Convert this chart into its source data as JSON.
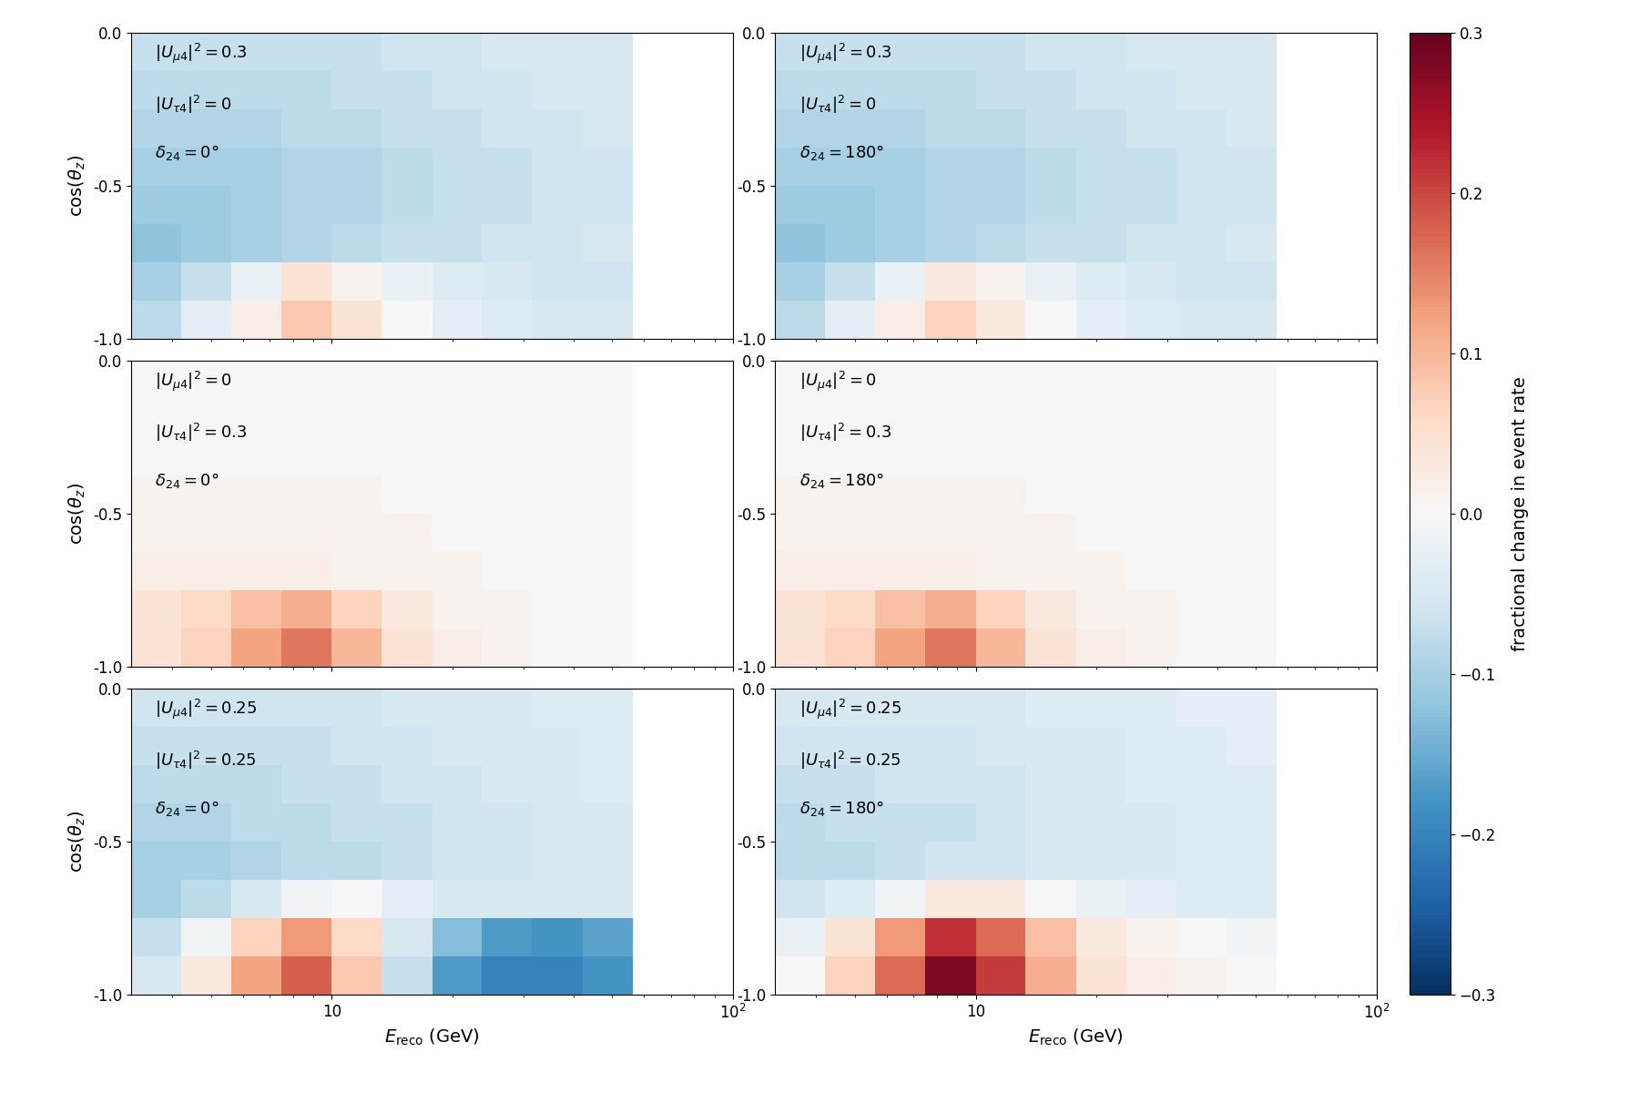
{
  "panels": [
    {
      "row": 0,
      "col": 0,
      "label_mu4": "0.3",
      "label_tau4": "0",
      "label_delta": "0",
      "data": [
        [
          -0.07,
          -0.07,
          -0.07,
          -0.07,
          -0.07,
          -0.06,
          -0.06,
          -0.05,
          -0.05,
          -0.05
        ],
        [
          -0.08,
          -0.08,
          -0.08,
          -0.08,
          -0.07,
          -0.07,
          -0.06,
          -0.06,
          -0.05,
          -0.05
        ],
        [
          -0.09,
          -0.09,
          -0.09,
          -0.08,
          -0.08,
          -0.07,
          -0.07,
          -0.06,
          -0.06,
          -0.05
        ],
        [
          -0.1,
          -0.1,
          -0.1,
          -0.09,
          -0.09,
          -0.08,
          -0.07,
          -0.07,
          -0.06,
          -0.06
        ],
        [
          -0.11,
          -0.11,
          -0.1,
          -0.09,
          -0.09,
          -0.08,
          -0.07,
          -0.07,
          -0.06,
          -0.06
        ],
        [
          -0.12,
          -0.11,
          -0.1,
          -0.09,
          -0.08,
          -0.07,
          -0.07,
          -0.06,
          -0.06,
          -0.05
        ],
        [
          -0.1,
          -0.07,
          -0.02,
          0.04,
          0.01,
          -0.02,
          -0.04,
          -0.05,
          -0.06,
          -0.06
        ],
        [
          -0.08,
          -0.03,
          0.02,
          0.08,
          0.04,
          0.0,
          -0.03,
          -0.04,
          -0.05,
          -0.05
        ]
      ]
    },
    {
      "row": 0,
      "col": 1,
      "label_mu4": "0.3",
      "label_tau4": "0",
      "label_delta": "180",
      "data": [
        [
          -0.07,
          -0.07,
          -0.07,
          -0.07,
          -0.07,
          -0.06,
          -0.06,
          -0.05,
          -0.05,
          -0.05
        ],
        [
          -0.08,
          -0.08,
          -0.08,
          -0.08,
          -0.07,
          -0.07,
          -0.06,
          -0.06,
          -0.05,
          -0.05
        ],
        [
          -0.09,
          -0.09,
          -0.09,
          -0.08,
          -0.08,
          -0.07,
          -0.07,
          -0.06,
          -0.06,
          -0.05
        ],
        [
          -0.1,
          -0.1,
          -0.1,
          -0.09,
          -0.09,
          -0.08,
          -0.07,
          -0.07,
          -0.06,
          -0.06
        ],
        [
          -0.11,
          -0.11,
          -0.1,
          -0.09,
          -0.09,
          -0.08,
          -0.07,
          -0.07,
          -0.06,
          -0.06
        ],
        [
          -0.12,
          -0.11,
          -0.1,
          -0.09,
          -0.08,
          -0.07,
          -0.07,
          -0.06,
          -0.06,
          -0.05
        ],
        [
          -0.1,
          -0.07,
          -0.02,
          0.03,
          0.01,
          -0.02,
          -0.04,
          -0.05,
          -0.06,
          -0.06
        ],
        [
          -0.08,
          -0.03,
          0.02,
          0.07,
          0.03,
          0.0,
          -0.03,
          -0.04,
          -0.05,
          -0.05
        ]
      ]
    },
    {
      "row": 1,
      "col": 0,
      "label_mu4": "0",
      "label_tau4": "0.3",
      "label_delta": "0",
      "data": [
        [
          0.0,
          0.0,
          0.0,
          0.0,
          0.0,
          0.0,
          0.0,
          0.0,
          0.0,
          0.0
        ],
        [
          0.0,
          0.0,
          0.0,
          0.0,
          0.0,
          0.0,
          0.0,
          0.0,
          0.0,
          0.0
        ],
        [
          0.0,
          0.0,
          0.0,
          0.0,
          0.0,
          0.0,
          0.0,
          0.0,
          0.0,
          0.0
        ],
        [
          0.01,
          0.01,
          0.01,
          0.01,
          0.01,
          0.0,
          0.0,
          0.0,
          0.0,
          0.0
        ],
        [
          0.01,
          0.01,
          0.01,
          0.01,
          0.01,
          0.01,
          0.0,
          0.0,
          0.0,
          0.0
        ],
        [
          0.02,
          0.02,
          0.02,
          0.02,
          0.01,
          0.01,
          0.01,
          0.0,
          0.0,
          0.0
        ],
        [
          0.04,
          0.06,
          0.09,
          0.11,
          0.07,
          0.03,
          0.01,
          0.01,
          0.0,
          0.0
        ],
        [
          0.04,
          0.07,
          0.12,
          0.16,
          0.1,
          0.04,
          0.02,
          0.01,
          0.0,
          0.0
        ]
      ]
    },
    {
      "row": 1,
      "col": 1,
      "label_mu4": "0",
      "label_tau4": "0.3",
      "label_delta": "180",
      "data": [
        [
          0.0,
          0.0,
          0.0,
          0.0,
          0.0,
          0.0,
          0.0,
          0.0,
          0.0,
          0.0
        ],
        [
          0.0,
          0.0,
          0.0,
          0.0,
          0.0,
          0.0,
          0.0,
          0.0,
          0.0,
          0.0
        ],
        [
          0.0,
          0.0,
          0.0,
          0.0,
          0.0,
          0.0,
          0.0,
          0.0,
          0.0,
          0.0
        ],
        [
          0.01,
          0.01,
          0.01,
          0.01,
          0.01,
          0.0,
          0.0,
          0.0,
          0.0,
          0.0
        ],
        [
          0.01,
          0.01,
          0.01,
          0.01,
          0.01,
          0.01,
          0.0,
          0.0,
          0.0,
          0.0
        ],
        [
          0.02,
          0.02,
          0.02,
          0.02,
          0.01,
          0.01,
          0.01,
          0.0,
          0.0,
          0.0
        ],
        [
          0.04,
          0.06,
          0.09,
          0.11,
          0.07,
          0.03,
          0.01,
          0.01,
          0.0,
          0.0
        ],
        [
          0.04,
          0.07,
          0.12,
          0.16,
          0.1,
          0.04,
          0.02,
          0.01,
          0.0,
          0.0
        ]
      ]
    },
    {
      "row": 2,
      "col": 0,
      "label_mu4": "0.25",
      "label_tau4": "0.25",
      "label_delta": "0",
      "data": [
        [
          -0.06,
          -0.06,
          -0.06,
          -0.06,
          -0.06,
          -0.05,
          -0.05,
          -0.05,
          -0.04,
          -0.04
        ],
        [
          -0.07,
          -0.07,
          -0.07,
          -0.07,
          -0.06,
          -0.06,
          -0.05,
          -0.05,
          -0.05,
          -0.04
        ],
        [
          -0.08,
          -0.08,
          -0.08,
          -0.07,
          -0.07,
          -0.06,
          -0.06,
          -0.05,
          -0.05,
          -0.04
        ],
        [
          -0.09,
          -0.09,
          -0.08,
          -0.08,
          -0.07,
          -0.07,
          -0.06,
          -0.06,
          -0.05,
          -0.05
        ],
        [
          -0.1,
          -0.1,
          -0.09,
          -0.08,
          -0.08,
          -0.07,
          -0.06,
          -0.06,
          -0.05,
          -0.05
        ],
        [
          -0.1,
          -0.08,
          -0.05,
          -0.01,
          0.0,
          -0.03,
          -0.05,
          -0.05,
          -0.05,
          -0.05
        ],
        [
          -0.07,
          -0.01,
          0.07,
          0.13,
          0.06,
          -0.05,
          -0.13,
          -0.17,
          -0.18,
          -0.16
        ],
        [
          -0.05,
          0.03,
          0.12,
          0.18,
          0.08,
          -0.07,
          -0.17,
          -0.2,
          -0.2,
          -0.18
        ]
      ]
    },
    {
      "row": 2,
      "col": 1,
      "label_mu4": "0.25",
      "label_tau4": "0.25",
      "label_delta": "180",
      "data": [
        [
          -0.05,
          -0.05,
          -0.05,
          -0.05,
          -0.05,
          -0.04,
          -0.04,
          -0.04,
          -0.03,
          -0.03
        ],
        [
          -0.06,
          -0.06,
          -0.06,
          -0.06,
          -0.05,
          -0.05,
          -0.05,
          -0.04,
          -0.04,
          -0.03
        ],
        [
          -0.07,
          -0.07,
          -0.06,
          -0.06,
          -0.06,
          -0.05,
          -0.05,
          -0.04,
          -0.04,
          -0.04
        ],
        [
          -0.08,
          -0.07,
          -0.07,
          -0.07,
          -0.06,
          -0.05,
          -0.05,
          -0.05,
          -0.04,
          -0.04
        ],
        [
          -0.08,
          -0.08,
          -0.07,
          -0.06,
          -0.06,
          -0.05,
          -0.05,
          -0.05,
          -0.04,
          -0.04
        ],
        [
          -0.06,
          -0.04,
          -0.01,
          0.03,
          0.03,
          0.0,
          -0.02,
          -0.03,
          -0.04,
          -0.04
        ],
        [
          -0.02,
          0.04,
          0.13,
          0.22,
          0.17,
          0.09,
          0.03,
          0.01,
          0.0,
          -0.01
        ],
        [
          0.0,
          0.07,
          0.17,
          0.28,
          0.21,
          0.11,
          0.04,
          0.02,
          0.01,
          0.0
        ]
      ]
    }
  ],
  "energy_edges": [
    3.16,
    4.22,
    5.62,
    7.5,
    10.0,
    13.3,
    17.8,
    23.7,
    31.6,
    42.2,
    56.2
  ],
  "coszen_edges": [
    0.0,
    -0.125,
    -0.25,
    -0.375,
    -0.5,
    -0.625,
    -0.75,
    -0.875,
    -1.0
  ],
  "vmin": -0.3,
  "vmax": 0.3,
  "cmap": "RdBu_r",
  "colorbar_label": "fractional change in event rate",
  "xlabel": "$E_\\mathrm{reco}$ (GeV)",
  "ylabel_left": "$\\cos(\\theta_z)$",
  "label_fontsize": 14,
  "annotation_fontsize": 13,
  "tick_fontsize": 12
}
